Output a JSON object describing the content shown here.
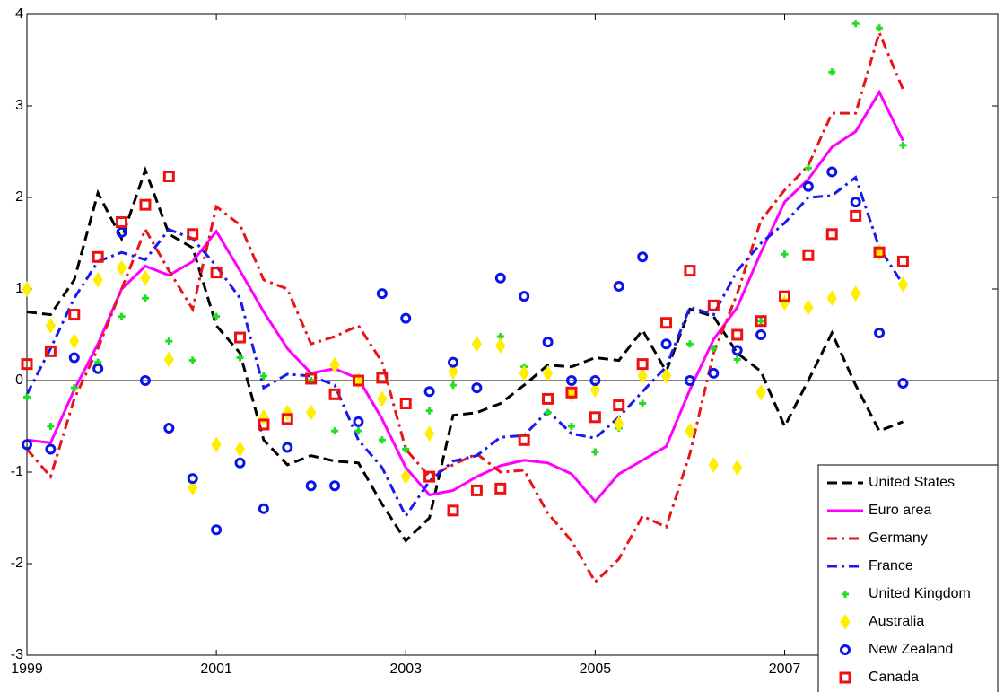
{
  "chart_data": {
    "type": "line",
    "x": [
      1999,
      1999.25,
      1999.5,
      1999.75,
      2000,
      2000.25,
      2000.5,
      2000.75,
      2001,
      2001.25,
      2001.5,
      2001.75,
      2002,
      2002.25,
      2002.5,
      2002.75,
      2003,
      2003.25,
      2003.5,
      2003.75,
      2004,
      2004.25,
      2004.5,
      2004.75,
      2005,
      2005.25,
      2005.5,
      2005.75,
      2006,
      2006.25,
      2006.5,
      2006.75,
      2007,
      2007.25,
      2007.5,
      2007.75,
      2008,
      2008.25
    ],
    "xlim": [
      1999,
      2009.25
    ],
    "xticks": [
      1999,
      2001,
      2003,
      2005,
      2007
    ],
    "ylim": [
      -3,
      4
    ],
    "yticks": [
      -3,
      -2,
      -1,
      0,
      1,
      2,
      3,
      4
    ],
    "legend": "lower-right",
    "series": [
      {
        "name": "United States",
        "color": "#000000",
        "mode": "line",
        "dash": "dashed",
        "values": [
          0.75,
          0.72,
          1.1,
          2.05,
          1.55,
          2.3,
          1.6,
          1.45,
          0.6,
          0.3,
          -0.65,
          -0.92,
          -0.82,
          -0.88,
          -0.9,
          -1.35,
          -1.75,
          -1.5,
          -0.38,
          -0.35,
          -0.25,
          -0.05,
          0.17,
          0.15,
          0.25,
          0.22,
          0.55,
          0.1,
          0.78,
          0.7,
          0.3,
          0.1,
          -0.5,
          0.0,
          0.52,
          -0.05,
          -0.55,
          -0.45
        ]
      },
      {
        "name": "Euro area",
        "color": "#ff00ff",
        "mode": "line",
        "dash": "solid",
        "values": [
          -0.65,
          -0.68,
          -0.1,
          0.4,
          1.0,
          1.25,
          1.15,
          1.3,
          1.63,
          1.2,
          0.75,
          0.35,
          0.08,
          0.13,
          0.02,
          -0.42,
          -0.95,
          -1.25,
          -1.2,
          -1.05,
          -0.93,
          -0.87,
          -0.9,
          -1.02,
          -1.32,
          -1.02,
          -0.87,
          -0.72,
          -0.1,
          0.45,
          0.8,
          1.4,
          1.95,
          2.2,
          2.55,
          2.72,
          3.15,
          2.62
        ]
      },
      {
        "name": "Germany",
        "color": "#e8151a",
        "mode": "line",
        "dash": "dashdot",
        "values": [
          -0.75,
          -1.05,
          -0.2,
          0.35,
          1.0,
          1.65,
          1.2,
          0.78,
          1.9,
          1.7,
          1.1,
          1.0,
          0.4,
          0.48,
          0.6,
          0.2,
          -0.75,
          -1.05,
          -0.92,
          -0.8,
          -1.0,
          -0.98,
          -1.45,
          -1.75,
          -2.2,
          -1.95,
          -1.48,
          -1.6,
          -0.8,
          0.3,
          0.95,
          1.75,
          2.08,
          2.35,
          2.92,
          2.92,
          3.8,
          3.18
        ]
      },
      {
        "name": "France",
        "color": "#1a1aee",
        "mode": "line",
        "dash": "dashdot",
        "values": [
          -0.15,
          0.35,
          0.9,
          1.3,
          1.4,
          1.32,
          1.65,
          1.55,
          1.25,
          0.9,
          -0.08,
          0.07,
          0.05,
          -0.05,
          -0.65,
          -0.95,
          -1.48,
          -1.1,
          -0.88,
          -0.82,
          -0.62,
          -0.6,
          -0.33,
          -0.58,
          -0.63,
          -0.4,
          -0.12,
          0.15,
          0.8,
          0.72,
          1.2,
          1.5,
          1.72,
          2.0,
          2.02,
          2.22,
          1.45,
          1.05
        ]
      },
      {
        "name": "United Kingdom",
        "color": "#22dd22",
        "mode": "marker",
        "marker": "plus",
        "values": [
          -0.18,
          -0.5,
          -0.08,
          0.2,
          0.7,
          0.9,
          0.43,
          0.22,
          0.7,
          0.25,
          0.05,
          -0.38,
          0.0,
          -0.55,
          -0.55,
          -0.65,
          -0.75,
          -0.33,
          -0.05,
          0.4,
          0.48,
          0.15,
          -0.35,
          -0.5,
          -0.78,
          -0.52,
          -0.25,
          0.08,
          0.4,
          0.35,
          0.23,
          0.65,
          1.38,
          2.32,
          3.37,
          3.9,
          3.85,
          2.57
        ]
      },
      {
        "name": "Australia",
        "color": "#ffee00",
        "mode": "marker",
        "marker": "diamond",
        "values": [
          1.0,
          0.6,
          0.43,
          1.1,
          1.23,
          1.12,
          0.23,
          -1.17,
          -0.7,
          -0.75,
          -0.4,
          -0.35,
          -0.35,
          0.17,
          0.0,
          -0.2,
          -1.05,
          -0.58,
          0.1,
          0.4,
          0.38,
          0.08,
          0.08,
          -0.15,
          -0.1,
          -0.47,
          0.05,
          0.05,
          -0.55,
          -0.92,
          -0.95,
          -0.13,
          0.85,
          0.8,
          0.9,
          0.95,
          1.4,
          1.05
        ]
      },
      {
        "name": "New Zealand",
        "color": "#0a14e6",
        "mode": "marker",
        "marker": "circle",
        "values": [
          -0.7,
          -0.75,
          0.25,
          0.13,
          1.62,
          0.0,
          -0.52,
          -1.07,
          -1.63,
          -0.9,
          -1.4,
          -0.73,
          -1.15,
          -1.15,
          -0.45,
          0.95,
          0.68,
          -0.12,
          0.2,
          -0.08,
          1.12,
          0.92,
          0.42,
          0.0,
          0.0,
          1.03,
          1.35,
          0.4,
          0.0,
          0.08,
          0.33,
          0.5,
          null,
          2.12,
          2.28,
          1.95,
          0.52,
          -0.03
        ]
      },
      {
        "name": "Canada",
        "color": "#ee1111",
        "mode": "marker",
        "marker": "square",
        "values": [
          0.18,
          0.32,
          0.72,
          1.35,
          1.73,
          1.92,
          2.23,
          1.6,
          1.18,
          0.47,
          -0.48,
          -0.42,
          0.02,
          -0.15,
          0.0,
          0.03,
          -0.25,
          -1.05,
          -1.42,
          -1.2,
          -1.18,
          -0.65,
          -0.2,
          -0.13,
          -0.4,
          -0.27,
          0.18,
          0.63,
          1.2,
          0.82,
          0.5,
          0.65,
          0.92,
          1.37,
          1.6,
          1.8,
          1.4,
          1.3
        ]
      }
    ]
  }
}
